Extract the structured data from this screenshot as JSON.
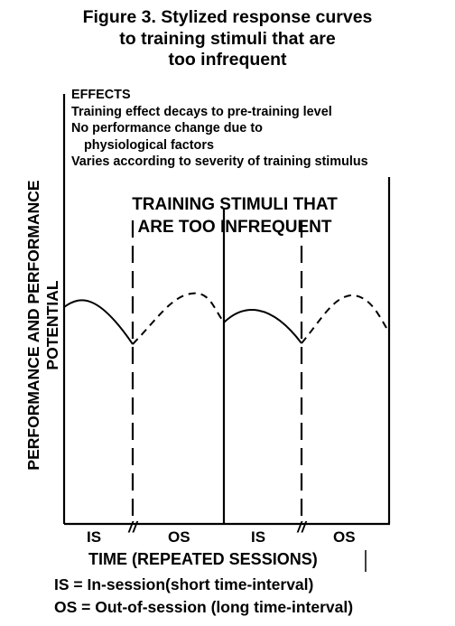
{
  "figure": {
    "title_lines": [
      "Figure 3. Stylized response curves",
      "to training stimuli that are",
      "too infrequent"
    ]
  },
  "effects": {
    "heading": "EFFECTS",
    "lines": [
      "Training effect decays to pre-training level",
      "No performance change due to",
      "physiological factors",
      "Varies according to severity of training stimulus"
    ]
  },
  "diagram": {
    "label_lines": [
      "TRAINING STIMULI THAT",
      "ARE TOO INFREQUENT"
    ],
    "y_axis_label_lines": [
      "PERFORMANCE AND PERFORMANCE",
      "POTENTIAL"
    ],
    "x_axis_label": "TIME (REPEATED SESSIONS)",
    "segments": [
      "IS",
      "OS",
      "IS",
      "OS"
    ],
    "break_mark": "//"
  },
  "legend": [
    "IS = In-session(short time-interval)",
    "OS = Out-of-session (long time-interval)"
  ]
}
